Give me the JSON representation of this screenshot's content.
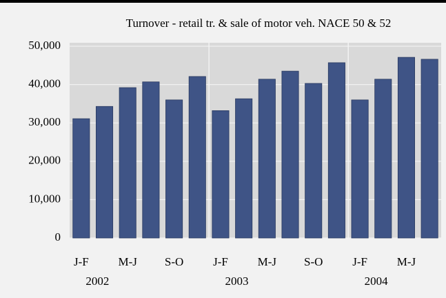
{
  "chart_data": {
    "type": "bar",
    "title": "Turnover - retail tr. & sale of motor veh. NACE 50 & 52",
    "categories": [
      "J-F",
      null,
      "M-J",
      null,
      "S-O",
      null,
      "J-F",
      null,
      "M-J",
      null,
      "S-O",
      null,
      "J-F",
      null,
      "M-J",
      null
    ],
    "groups": [
      "2002",
      null,
      null,
      null,
      null,
      null,
      "2003",
      null,
      null,
      null,
      null,
      null,
      "2004",
      null,
      null,
      null
    ],
    "values": [
      31100,
      34300,
      39200,
      40700,
      36000,
      42100,
      33200,
      36300,
      41400,
      43500,
      40300,
      45700,
      36000,
      41400,
      47100,
      46600
    ],
    "color": "#3f5486",
    "ylim": [
      0,
      50000
    ],
    "yticks": [
      0,
      {
        "value": 10000,
        "label": "10,000"
      },
      {
        "value": 20000,
        "label": "20,000"
      },
      {
        "value": 30000,
        "label": "30,000"
      },
      {
        "value": 40000,
        "label": "40,000"
      },
      {
        "value": 50000,
        "label": "50,000"
      }
    ],
    "grid": true
  }
}
